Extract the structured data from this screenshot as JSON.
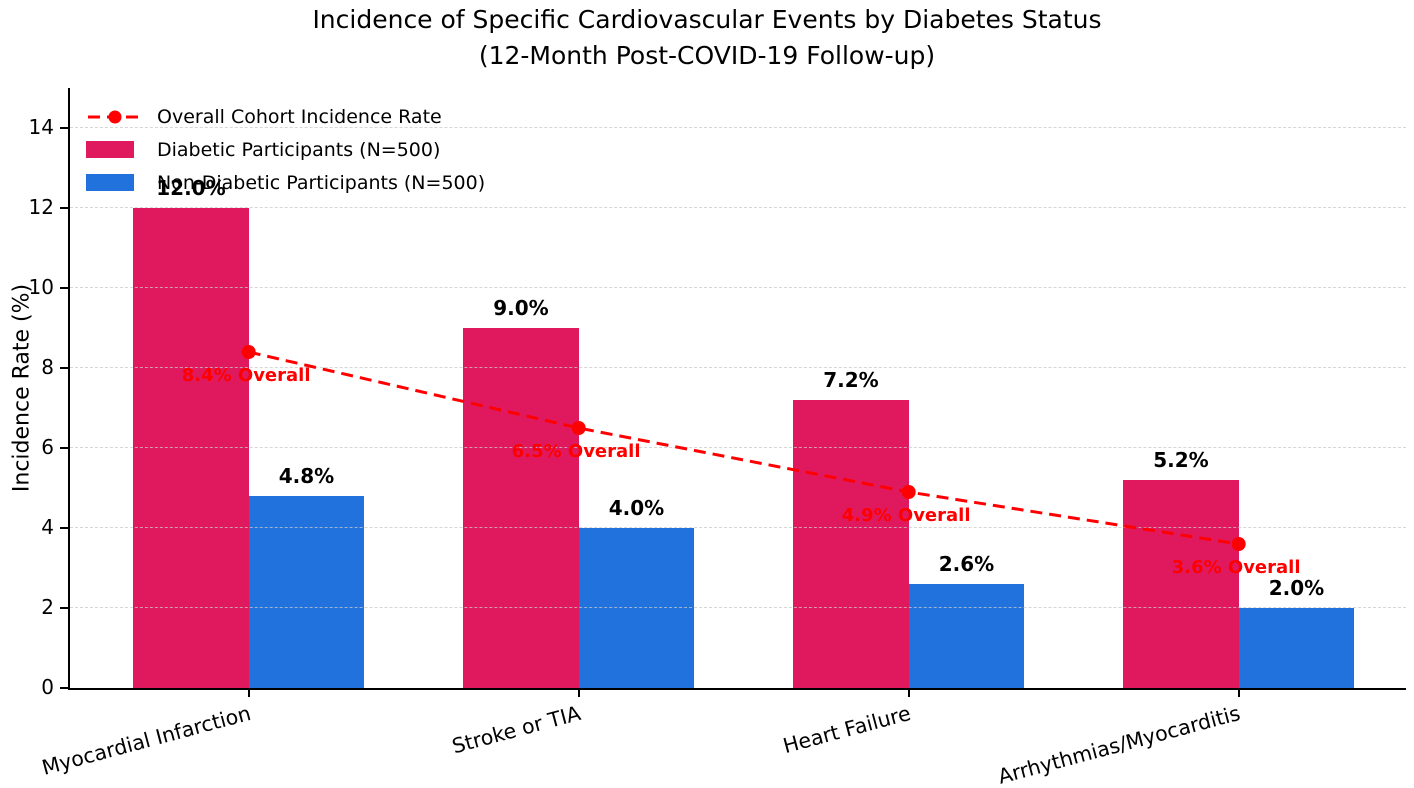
{
  "chart_data": {
    "type": "bar",
    "title": "Incidence of Specific Cardiovascular Events by Diabetes Status",
    "subtitle": "(12-Month Post-COVID-19 Follow-up)",
    "ylabel": "Incidence Rate (%)",
    "xlabel": "",
    "ylim": [
      0,
      15
    ],
    "yticks": [
      0,
      2,
      4,
      6,
      8,
      10,
      12,
      14
    ],
    "grid": "horizontal dashed",
    "legend_position": "upper left",
    "categories": [
      "Myocardial Infarction",
      "Stroke or TIA",
      "Heart Failure",
      "Arrhythmias/Myocarditis"
    ],
    "series": [
      {
        "name": "Diabetic Participants (N=500)",
        "type": "bar",
        "color": "#E0195E",
        "values": [
          12.0,
          9.0,
          7.2,
          5.2
        ],
        "bar_labels": [
          "12.0%",
          "9.0%",
          "7.2%",
          "5.2%"
        ]
      },
      {
        "name": "Non-Diabetic Participants (N=500)",
        "type": "bar",
        "color": "#2272DE",
        "values": [
          4.8,
          4.0,
          2.6,
          2.0
        ],
        "bar_labels": [
          "4.8%",
          "4.0%",
          "2.6%",
          "2.0%"
        ]
      },
      {
        "name": "Overall Cohort Incidence Rate",
        "type": "line",
        "style": "dashed",
        "color": "#FF0000",
        "values": [
          8.4,
          6.5,
          4.9,
          3.6
        ],
        "point_labels": [
          "8.4% Overall",
          "6.5% Overall",
          "4.9% Overall",
          "3.6% Overall"
        ]
      }
    ],
    "colors": {
      "grid": "#CCCCCC",
      "axis": "#000000",
      "text": "#000000",
      "background": "#FFFFFF"
    }
  }
}
